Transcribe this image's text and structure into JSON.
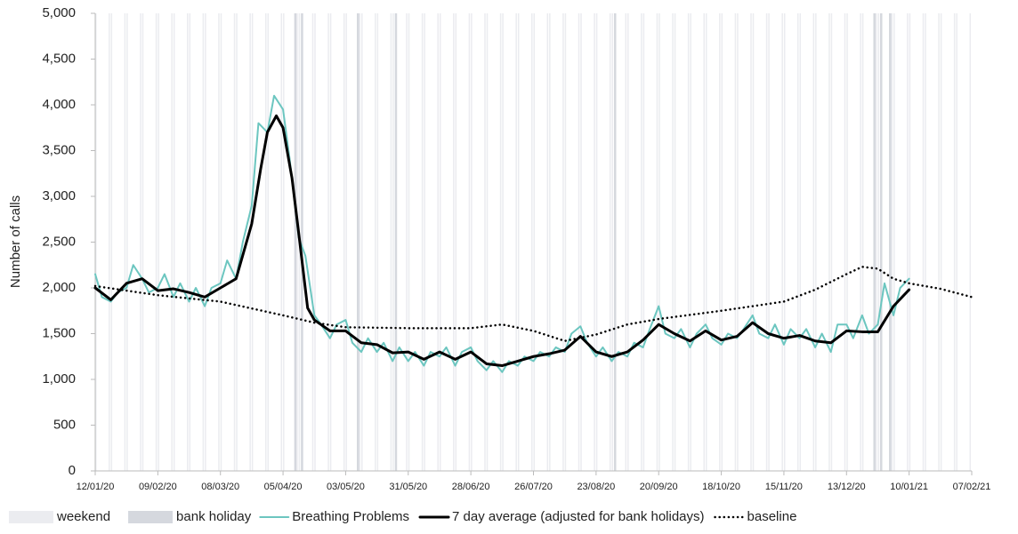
{
  "chart_data": {
    "type": "line",
    "y_label": "Number of calls",
    "xlim": [
      "12/01/20",
      "07/02/21"
    ],
    "xticks": [
      "12/01/20",
      "09/02/20",
      "08/03/20",
      "05/04/20",
      "03/05/20",
      "31/05/20",
      "28/06/20",
      "26/07/20",
      "23/08/20",
      "20/09/20",
      "18/10/20",
      "15/11/20",
      "13/12/20",
      "10/01/21",
      "07/02/21"
    ],
    "ylim": [
      0,
      5000
    ],
    "yticks": [
      0,
      500,
      {
        "value": 1000,
        "label": "1,000"
      },
      {
        "value": 1500,
        "label": "1,500"
      },
      {
        "value": 2000,
        "label": "2,000"
      },
      {
        "value": 2500,
        "label": "2,500"
      },
      {
        "value": 3000,
        "label": "3,000"
      },
      {
        "value": 3500,
        "label": "3,500"
      },
      {
        "value": 4000,
        "label": "4,000"
      },
      {
        "value": 4500,
        "label": "4,500"
      },
      {
        "value": 5000,
        "label": "5,000"
      }
    ],
    "grid": false,
    "legend": "bottom",
    "shading": [
      {
        "name": "weekend",
        "color": "#ebecf0"
      },
      {
        "name": "bank holiday",
        "color": "#d5d8de",
        "dates": [
          "10/04/20",
          "13/04/20",
          "08/05/20",
          "25/05/20",
          "31/08/20",
          "25/12/20",
          "28/12/20",
          "01/01/21"
        ]
      }
    ],
    "series": [
      {
        "name": "Breathing Problems",
        "color": "#6cc6c0",
        "width": 2,
        "dash": "solid",
        "x": [
          "12/01/20",
          "15/01/20",
          "19/01/20",
          "22/01/20",
          "26/01/20",
          "29/01/20",
          "02/02/20",
          "05/02/20",
          "09/02/20",
          "12/02/20",
          "16/02/20",
          "19/02/20",
          "23/02/20",
          "26/02/20",
          "01/03/20",
          "04/03/20",
          "08/03/20",
          "11/03/20",
          "15/03/20",
          "18/03/20",
          "22/03/20",
          "25/03/20",
          "29/03/20",
          "01/04/20",
          "05/04/20",
          "08/04/20",
          "12/04/20",
          "15/04/20",
          "19/04/20",
          "22/04/20",
          "26/04/20",
          "29/04/20",
          "03/05/20",
          "06/05/20",
          "10/05/20",
          "13/05/20",
          "17/05/20",
          "20/05/20",
          "24/05/20",
          "27/05/20",
          "31/05/20",
          "03/06/20",
          "07/06/20",
          "10/06/20",
          "14/06/20",
          "17/06/20",
          "21/06/20",
          "24/06/20",
          "28/06/20",
          "01/07/20",
          "05/07/20",
          "08/07/20",
          "12/07/20",
          "15/07/20",
          "19/07/20",
          "22/07/20",
          "26/07/20",
          "29/07/20",
          "02/08/20",
          "05/08/20",
          "09/08/20",
          "12/08/20",
          "16/08/20",
          "19/08/20",
          "23/08/20",
          "26/08/20",
          "30/08/20",
          "02/09/20",
          "06/09/20",
          "09/09/20",
          "13/09/20",
          "16/09/20",
          "20/09/20",
          "23/09/20",
          "27/09/20",
          "30/09/20",
          "04/10/20",
          "07/10/20",
          "11/10/20",
          "14/10/20",
          "18/10/20",
          "21/10/20",
          "25/10/20",
          "28/10/20",
          "01/11/20",
          "04/11/20",
          "08/11/20",
          "11/11/20",
          "15/11/20",
          "18/11/20",
          "22/11/20",
          "25/11/20",
          "29/11/20",
          "02/12/20",
          "06/12/20",
          "09/12/20",
          "13/12/20",
          "16/12/20",
          "20/12/20",
          "23/12/20",
          "27/12/20",
          "30/12/20",
          "03/01/21",
          "06/01/21",
          "10/01/21"
        ],
        "values": [
          2150,
          1900,
          1850,
          1950,
          2000,
          2250,
          2100,
          1950,
          2000,
          2150,
          1900,
          2050,
          1850,
          2000,
          1800,
          2000,
          2050,
          2300,
          2100,
          2500,
          2900,
          3800,
          3700,
          4100,
          3950,
          3400,
          2550,
          2350,
          1700,
          1600,
          1450,
          1600,
          1650,
          1400,
          1300,
          1450,
          1300,
          1400,
          1200,
          1350,
          1200,
          1300,
          1150,
          1300,
          1250,
          1350,
          1150,
          1300,
          1350,
          1200,
          1100,
          1200,
          1080,
          1200,
          1150,
          1250,
          1200,
          1300,
          1250,
          1350,
          1300,
          1500,
          1580,
          1400,
          1250,
          1350,
          1200,
          1300,
          1250,
          1400,
          1350,
          1550,
          1800,
          1500,
          1450,
          1550,
          1350,
          1500,
          1600,
          1450,
          1380,
          1500,
          1450,
          1550,
          1700,
          1500,
          1450,
          1600,
          1380,
          1550,
          1450,
          1550,
          1350,
          1500,
          1300,
          1600,
          1600,
          1450,
          1700,
          1500,
          1600,
          2050,
          1700,
          2000,
          2100
        ]
      },
      {
        "name": "7 day average (adjusted for bank holidays)",
        "color": "#000000",
        "width": 3,
        "dash": "solid",
        "x": [
          "12/01/20",
          "19/01/20",
          "26/01/20",
          "02/02/20",
          "09/02/20",
          "16/02/20",
          "23/02/20",
          "01/03/20",
          "08/03/20",
          "15/03/20",
          "22/03/20",
          "26/03/20",
          "29/03/20",
          "02/04/20",
          "05/04/20",
          "09/04/20",
          "12/04/20",
          "16/04/20",
          "19/04/20",
          "26/04/20",
          "03/05/20",
          "10/05/20",
          "17/05/20",
          "24/05/20",
          "31/05/20",
          "07/06/20",
          "14/06/20",
          "21/06/20",
          "28/06/20",
          "05/07/20",
          "12/07/20",
          "19/07/20",
          "26/07/20",
          "02/08/20",
          "09/08/20",
          "16/08/20",
          "23/08/20",
          "30/08/20",
          "06/09/20",
          "13/09/20",
          "20/09/20",
          "27/09/20",
          "04/10/20",
          "11/10/20",
          "18/10/20",
          "25/10/20",
          "01/11/20",
          "08/11/20",
          "15/11/20",
          "22/11/20",
          "29/11/20",
          "06/12/20",
          "13/12/20",
          "20/12/20",
          "27/12/20",
          "03/01/21",
          "10/01/21"
        ],
        "values": [
          2000,
          1870,
          2050,
          2100,
          1970,
          1990,
          1950,
          1900,
          2000,
          2100,
          2700,
          3300,
          3700,
          3880,
          3750,
          3200,
          2600,
          1780,
          1650,
          1530,
          1530,
          1400,
          1380,
          1290,
          1300,
          1220,
          1300,
          1220,
          1300,
          1170,
          1150,
          1200,
          1250,
          1280,
          1320,
          1470,
          1300,
          1250,
          1300,
          1430,
          1600,
          1500,
          1420,
          1530,
          1430,
          1470,
          1620,
          1500,
          1450,
          1480,
          1420,
          1400,
          1530,
          1520,
          1520,
          1800,
          1980
        ]
      },
      {
        "name": "baseline",
        "color": "#000000",
        "width": 2.5,
        "dash": "dotted",
        "x": [
          "12/01/20",
          "09/02/20",
          "08/03/20",
          "05/04/20",
          "19/04/20",
          "03/05/20",
          "31/05/20",
          "28/06/20",
          "12/07/20",
          "26/07/20",
          "09/08/20",
          "23/08/20",
          "06/09/20",
          "20/09/20",
          "18/10/20",
          "01/11/20",
          "15/11/20",
          "29/11/20",
          "13/12/20",
          "20/12/20",
          "27/12/20",
          "03/01/21",
          "10/01/21",
          "24/01/21",
          "07/02/21"
        ],
        "values": [
          2020,
          1920,
          1850,
          1700,
          1620,
          1570,
          1560,
          1560,
          1600,
          1530,
          1420,
          1490,
          1600,
          1660,
          1750,
          1800,
          1850,
          1980,
          2150,
          2230,
          2210,
          2100,
          2050,
          1990,
          1900
        ]
      }
    ]
  }
}
